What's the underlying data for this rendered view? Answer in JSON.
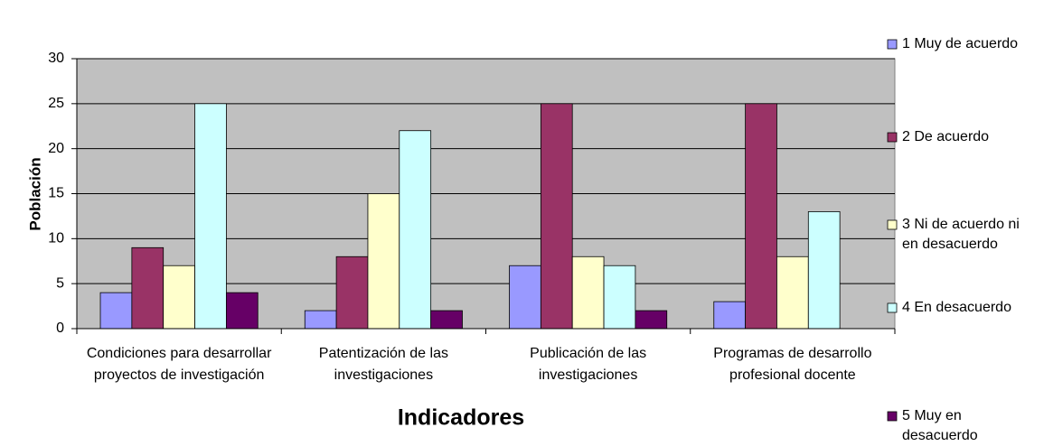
{
  "chart_data": {
    "type": "bar",
    "x_label": "Indicadores",
    "y_label": "Población",
    "categories": [
      "Condiciones para desarrollar proyectos de investigación",
      "Patentización de las investigaciones",
      "Publicación de las investigaciones",
      "Programas de desarrollo profesional docente"
    ],
    "series": [
      {
        "name": "1 Muy de acuerdo",
        "color": "#9999ff",
        "values": [
          4,
          2,
          7,
          3
        ]
      },
      {
        "name": "2 De acuerdo",
        "color": "#993366",
        "values": [
          9,
          8,
          25,
          25
        ]
      },
      {
        "name": "3 Ni de acuerdo ni en desacuerdo",
        "color": "#ffffcc",
        "values": [
          7,
          15,
          8,
          8
        ]
      },
      {
        "name": "4 En desacuerdo",
        "color": "#ccffff",
        "values": [
          25,
          22,
          7,
          13
        ]
      },
      {
        "name": "5 Muy en desacuerdo",
        "color": "#660066",
        "values": [
          4,
          2,
          2,
          0
        ]
      }
    ],
    "ylim": [
      0,
      30
    ],
    "yticks": [
      0,
      5,
      10,
      15,
      20,
      25,
      30
    ],
    "grid": true,
    "legend": "right"
  }
}
